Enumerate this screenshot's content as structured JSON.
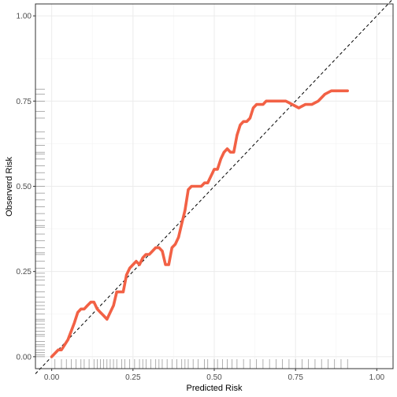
{
  "chart_data": {
    "type": "line",
    "title": "",
    "xlabel": "Predicted Risk",
    "ylabel": "Observerd Risk",
    "xlim": [
      -0.05,
      1.05
    ],
    "ylim": [
      -0.035,
      1.035
    ],
    "x_ticks": [
      "0.00",
      "0.25",
      "0.50",
      "0.75",
      "1.00"
    ],
    "y_ticks": [
      "0.00",
      "0.25",
      "0.50",
      "0.75",
      "1.00"
    ],
    "grid": true,
    "legend": "none",
    "colors": {
      "curve": "#f26145",
      "reference": "#000000",
      "rug": "#8c8c8c",
      "grid": "#ebebeb",
      "panel_border": "#333333"
    },
    "series": [
      {
        "style": "solid-thick",
        "x": [
          0.0,
          0.02,
          0.03,
          0.05,
          0.07,
          0.08,
          0.09,
          0.1,
          0.11,
          0.12,
          0.13,
          0.14,
          0.15,
          0.16,
          0.17,
          0.18,
          0.19,
          0.2,
          0.21,
          0.22,
          0.23,
          0.24,
          0.25,
          0.26,
          0.27,
          0.28,
          0.29,
          0.3,
          0.31,
          0.32,
          0.33,
          0.34,
          0.35,
          0.36,
          0.37,
          0.38,
          0.39,
          0.4,
          0.41,
          0.42,
          0.43,
          0.44,
          0.45,
          0.46,
          0.47,
          0.48,
          0.5,
          0.51,
          0.52,
          0.53,
          0.54,
          0.55,
          0.56,
          0.57,
          0.58,
          0.59,
          0.6,
          0.61,
          0.62,
          0.63,
          0.64,
          0.65,
          0.66,
          0.67,
          0.68,
          0.7,
          0.72,
          0.74,
          0.76,
          0.78,
          0.8,
          0.82,
          0.84,
          0.86,
          0.88,
          0.9,
          0.91
        ],
        "values": [
          0.0,
          0.02,
          0.02,
          0.05,
          0.1,
          0.13,
          0.14,
          0.14,
          0.15,
          0.16,
          0.16,
          0.14,
          0.13,
          0.12,
          0.11,
          0.13,
          0.15,
          0.19,
          0.19,
          0.19,
          0.24,
          0.26,
          0.27,
          0.28,
          0.27,
          0.29,
          0.3,
          0.3,
          0.31,
          0.32,
          0.32,
          0.31,
          0.27,
          0.27,
          0.32,
          0.33,
          0.35,
          0.39,
          0.43,
          0.49,
          0.5,
          0.5,
          0.5,
          0.5,
          0.51,
          0.51,
          0.55,
          0.55,
          0.58,
          0.6,
          0.61,
          0.6,
          0.6,
          0.65,
          0.68,
          0.69,
          0.69,
          0.7,
          0.73,
          0.74,
          0.74,
          0.74,
          0.75,
          0.75,
          0.75,
          0.75,
          0.75,
          0.74,
          0.73,
          0.74,
          0.74,
          0.75,
          0.77,
          0.78,
          0.78,
          0.78,
          0.78
        ]
      },
      {
        "style": "dashed",
        "x": [
          -0.05,
          1.05
        ],
        "values": [
          -0.05,
          1.05
        ]
      }
    ],
    "rug_y": [
      0.0,
      0.005,
      0.012,
      0.02,
      0.03,
      0.035,
      0.045,
      0.06,
      0.065,
      0.075,
      0.085,
      0.095,
      0.105,
      0.11,
      0.125,
      0.14,
      0.15,
      0.16,
      0.175,
      0.19,
      0.21,
      0.225,
      0.235,
      0.245,
      0.26,
      0.28,
      0.3,
      0.305,
      0.32,
      0.34,
      0.36,
      0.38,
      0.385,
      0.4,
      0.42,
      0.44,
      0.46,
      0.48,
      0.5,
      0.52,
      0.54,
      0.56,
      0.58,
      0.595,
      0.6,
      0.62,
      0.64,
      0.66,
      0.7,
      0.72,
      0.75,
      0.77,
      0.785
    ],
    "rug_x": [
      0.01,
      0.03,
      0.045,
      0.06,
      0.075,
      0.09,
      0.1,
      0.115,
      0.13,
      0.14,
      0.15,
      0.16,
      0.17,
      0.18,
      0.19,
      0.2,
      0.215,
      0.225,
      0.24,
      0.255,
      0.27,
      0.28,
      0.29,
      0.305,
      0.32,
      0.33,
      0.34,
      0.355,
      0.37,
      0.385,
      0.4,
      0.41,
      0.42,
      0.435,
      0.45,
      0.47,
      0.48,
      0.5,
      0.51,
      0.525,
      0.54,
      0.555,
      0.57,
      0.59,
      0.61,
      0.63,
      0.65,
      0.67,
      0.69,
      0.71,
      0.73,
      0.75,
      0.77,
      0.79,
      0.81,
      0.83,
      0.85,
      0.87,
      0.89,
      0.91
    ]
  }
}
